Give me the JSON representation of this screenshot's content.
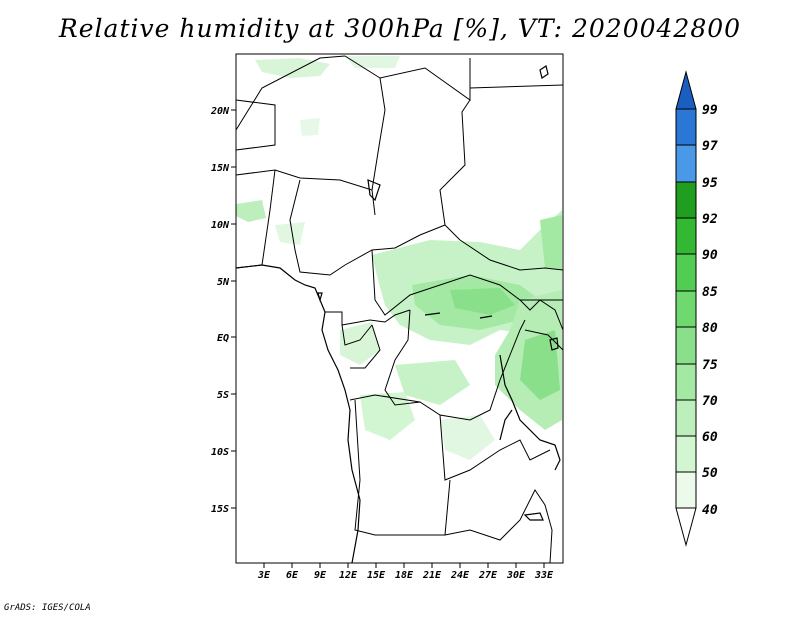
{
  "title": "Relative humidity at 300hPa [%], VT: 2020042800",
  "credit": "GrADS: IGES/COLA",
  "map": {
    "lat_labels": [
      "20N",
      "15N",
      "10N",
      "5N",
      "EQ",
      "5S",
      "10S",
      "15S"
    ],
    "lon_labels": [
      "3E",
      "6E",
      "9E",
      "12E",
      "15E",
      "18E",
      "21E",
      "24E",
      "27E",
      "30E",
      "33E"
    ]
  },
  "colorbar": {
    "levels": [
      "40",
      "50",
      "60",
      "70",
      "75",
      "80",
      "85",
      "90",
      "92",
      "95",
      "97",
      "99"
    ],
    "colors": [
      "#ebfaeb",
      "#d2f5d2",
      "#bcefbc",
      "#a3e8a3",
      "#8ae08a",
      "#6fd86f",
      "#52cc52",
      "#33b833",
      "#1f9e1f",
      "#4a99e8",
      "#2a77d6",
      "#1a5fc0"
    ]
  }
}
